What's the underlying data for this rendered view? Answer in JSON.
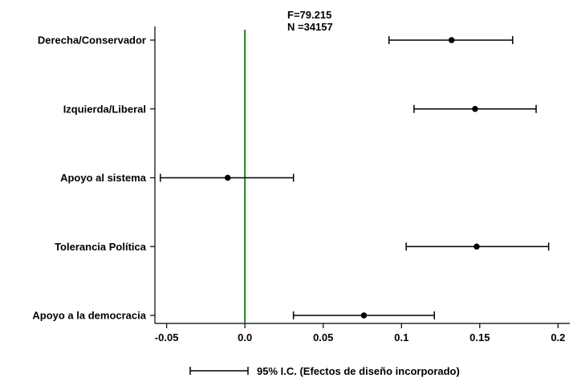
{
  "chart_data": {
    "type": "scatter",
    "subtype": "coefficient-plot-with-confidence-intervals",
    "annotations": {
      "f_stat": "F=79.215",
      "n": "N =34157"
    },
    "categories": [
      "Derecha/Conservador",
      "Izquierda/Liberal",
      "Apoyo al sistema",
      "Tolerancia Política",
      "Apoyo a la democracia"
    ],
    "estimates": [
      0.132,
      0.147,
      -0.011,
      0.148,
      0.076
    ],
    "ci_low": [
      0.092,
      0.108,
      -0.054,
      0.103,
      0.031
    ],
    "ci_high": [
      0.171,
      0.186,
      0.031,
      0.194,
      0.121
    ],
    "reference_line": {
      "x": 0,
      "color": "#1a8a1a"
    },
    "xlim": [
      -0.0575,
      0.2075
    ],
    "xticks": [
      -0.05,
      0.0,
      0.05,
      0.1,
      0.15,
      0.2
    ],
    "xtick_labels": [
      "-0.05",
      "0.0",
      "0.05",
      "0.1",
      "0.15",
      "0.2"
    ],
    "legend": {
      "label": "95% I.C. (Efectos de diseño incorporado)",
      "position": "bottom-center"
    },
    "grid": false
  }
}
